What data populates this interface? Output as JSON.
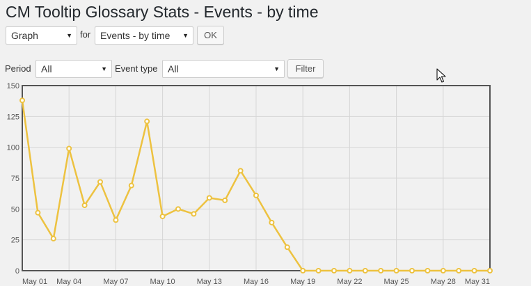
{
  "title": "CM Tooltip Glossary Stats - Events - by time",
  "view_select": {
    "value": "Graph"
  },
  "for_label": "for",
  "report_select": {
    "value": "Events - by time"
  },
  "ok_label": "OK",
  "period_label": "Period",
  "period_select": {
    "value": "All"
  },
  "event_type_label": "Event type",
  "event_type_select": {
    "value": "All"
  },
  "filter_label": "Filter",
  "icons": {
    "dropdown": "chevron-down-icon",
    "cursor": "mouse-pointer-icon"
  },
  "colors": {
    "series": "#edc240",
    "plot_border": "#545454",
    "grid": "#d6d6d6"
  },
  "chart_data": {
    "type": "line",
    "title": "",
    "xlabel": "",
    "ylabel": "",
    "ylim": [
      0,
      150
    ],
    "yticks": [
      0,
      25,
      50,
      75,
      100,
      125,
      150
    ],
    "xlim": [
      1,
      31
    ],
    "xticks": [
      {
        "day": 1,
        "label": "May 01"
      },
      {
        "day": 4,
        "label": "May 04"
      },
      {
        "day": 7,
        "label": "May 07"
      },
      {
        "day": 10,
        "label": "May 10"
      },
      {
        "day": 13,
        "label": "May 13"
      },
      {
        "day": 16,
        "label": "May 16"
      },
      {
        "day": 19,
        "label": "May 19"
      },
      {
        "day": 22,
        "label": "May 22"
      },
      {
        "day": 25,
        "label": "May 25"
      },
      {
        "day": 28,
        "label": "May 28"
      },
      {
        "day": 31,
        "label": "May 31"
      }
    ],
    "grid": true,
    "series": [
      {
        "x": [
          1,
          2,
          3,
          4,
          5,
          6,
          7,
          8,
          9,
          10,
          11,
          12,
          13,
          14,
          15,
          16,
          17,
          18,
          19,
          20,
          21,
          22,
          23,
          24,
          25,
          26,
          27,
          28,
          29,
          30,
          31
        ],
        "values": [
          138,
          47,
          26,
          99,
          53,
          72,
          41,
          69,
          121,
          44,
          50,
          46,
          59,
          57,
          81,
          61,
          39,
          19,
          0,
          0,
          0,
          0,
          0,
          0,
          0,
          0,
          0,
          0,
          0,
          0,
          0
        ]
      }
    ]
  }
}
